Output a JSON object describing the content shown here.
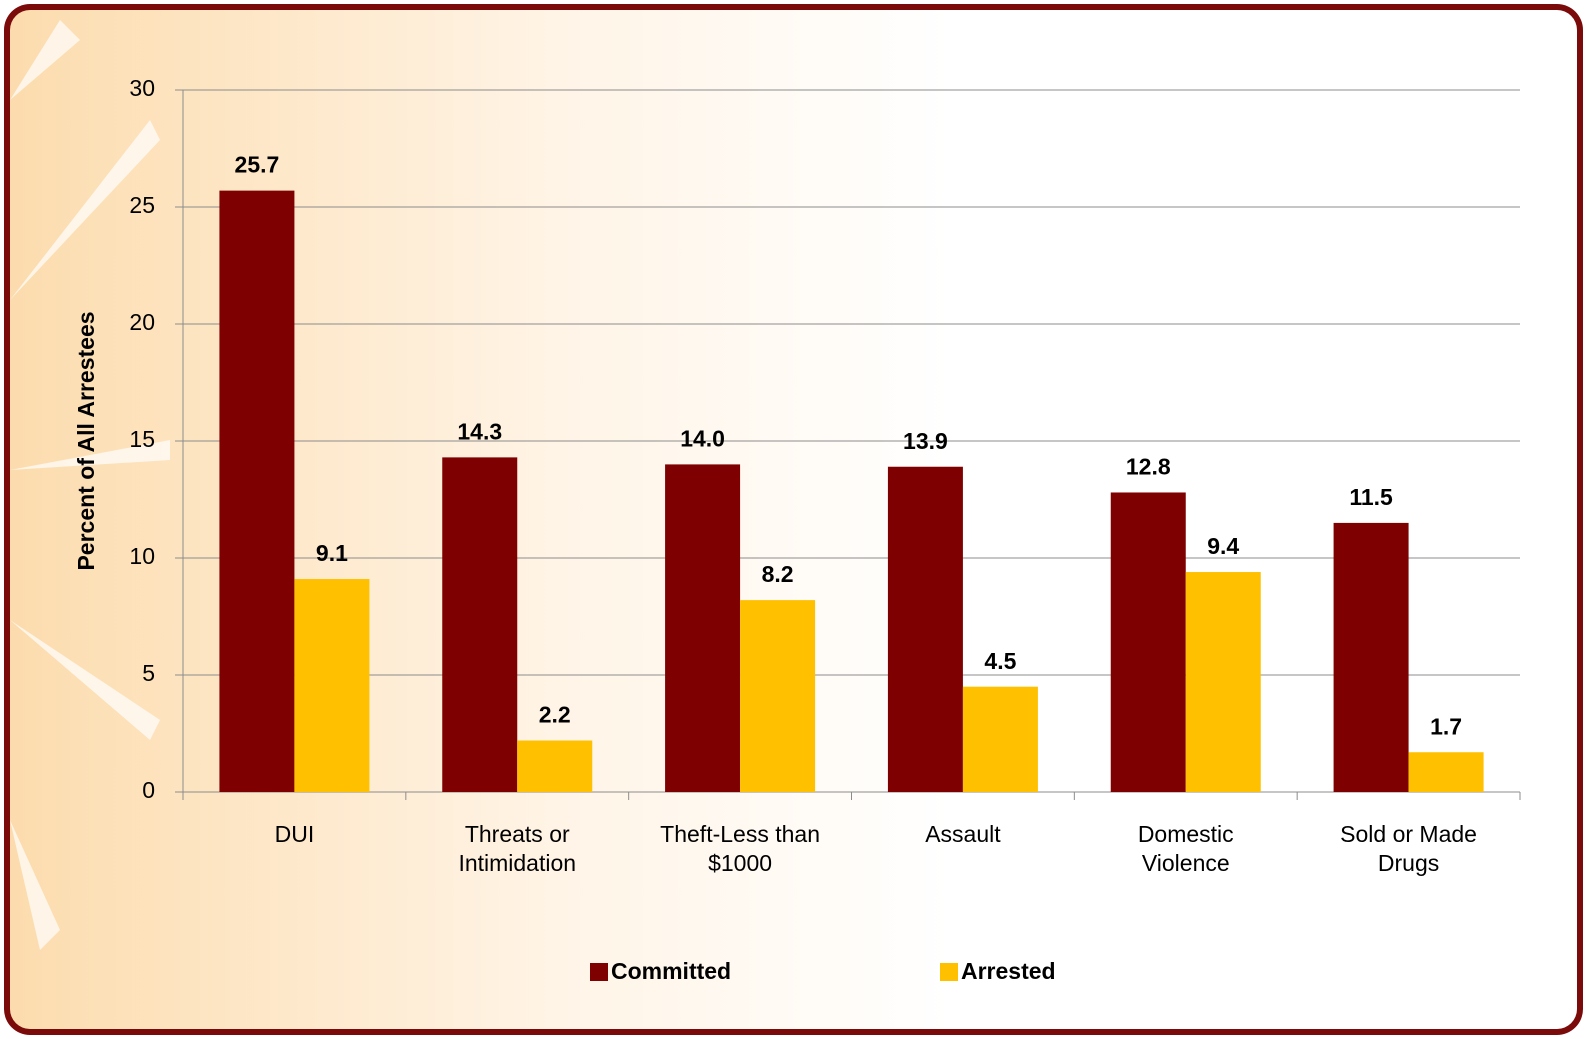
{
  "chart_data": {
    "type": "bar",
    "y_label": "Percent of All Arrestees",
    "categories": [
      "DUI",
      "Threats or Intimidation",
      "Theft-Less than $1000",
      "Assault",
      "Domestic Violence",
      "Sold or Made Drugs"
    ],
    "series": [
      {
        "name": "Committed",
        "color": "#7f0000",
        "values": [
          25.7,
          14.3,
          14.0,
          13.9,
          12.8,
          11.5
        ],
        "value_labels": [
          "25.7",
          "14.3",
          "14.0",
          "13.9",
          "12.8",
          "11.5"
        ]
      },
      {
        "name": "Arrested",
        "color": "#ffc000",
        "values": [
          9.1,
          2.2,
          8.2,
          4.5,
          9.4,
          1.7
        ],
        "value_labels": [
          "9.1",
          "2.2",
          "8.2",
          "4.5",
          "9.4",
          "1.7"
        ]
      }
    ],
    "ylim": [
      0,
      30
    ],
    "yticks": [
      0,
      5,
      10,
      15,
      20,
      25,
      30
    ],
    "grid": true,
    "legend": "bottom"
  }
}
